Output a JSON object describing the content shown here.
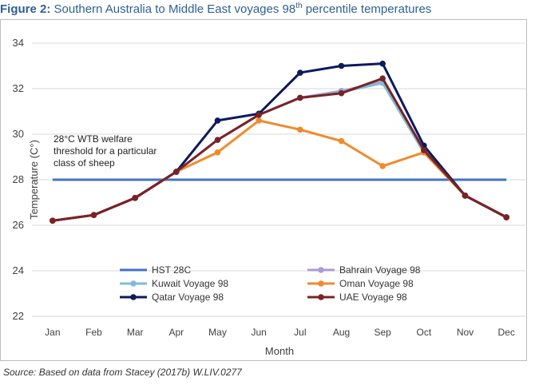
{
  "header": {
    "figure_label": "Figure 2:",
    "title_text": "Southern Australia to Middle East voyages 98",
    "title_sup": "th",
    "title_end": "percentile temperatures"
  },
  "source": "Source: Based on data from Stacey (2017b) W.LIV.0277",
  "annotation": [
    "28°C WTB welfare",
    "threshold for a particular",
    "class of sheep"
  ],
  "chart_data": {
    "type": "line",
    "xlabel": "Month",
    "ylabel": "Temperature (C°)",
    "categories": [
      "Jan",
      "Feb",
      "Mar",
      "Apr",
      "May",
      "Jun",
      "Jul",
      "Aug",
      "Sep",
      "Oct",
      "Nov",
      "Dec"
    ],
    "ylim": [
      22,
      34
    ],
    "yticks": [
      22,
      24,
      26,
      28,
      30,
      32,
      34
    ],
    "grid": true,
    "legend_position": "bottom-center",
    "series": [
      {
        "name": "HST 28C",
        "color": "#4472c4",
        "marker": false,
        "values": [
          28,
          28,
          28,
          28,
          28,
          28,
          28,
          28,
          28,
          28,
          28,
          28
        ]
      },
      {
        "name": "Bahrain Voyage 98",
        "color": "#a99bd4",
        "marker": true,
        "values": [
          26.2,
          26.45,
          27.2,
          28.35,
          29.75,
          30.85,
          31.6,
          31.9,
          32.3,
          29.2,
          27.3,
          26.35
        ]
      },
      {
        "name": "Kuwait Voyage 98",
        "color": "#7fbcd8",
        "marker": true,
        "values": [
          26.2,
          26.45,
          27.2,
          28.35,
          29.75,
          30.85,
          31.6,
          31.85,
          32.25,
          29.2,
          27.3,
          26.35
        ]
      },
      {
        "name": "Oman Voyage 98",
        "color": "#f08a2c",
        "marker": true,
        "values": [
          26.2,
          26.45,
          27.2,
          28.35,
          29.2,
          30.6,
          30.2,
          29.7,
          28.6,
          29.2,
          27.3,
          26.35
        ]
      },
      {
        "name": "Qatar Voyage 98",
        "color": "#0d1a5c",
        "marker": true,
        "values": [
          26.2,
          26.45,
          27.2,
          28.35,
          30.6,
          30.9,
          32.7,
          33.0,
          33.1,
          29.5,
          27.3,
          26.35
        ]
      },
      {
        "name": "UAE Voyage 98",
        "color": "#7b2226",
        "marker": true,
        "values": [
          26.2,
          26.45,
          27.2,
          28.35,
          29.75,
          30.85,
          31.6,
          31.8,
          32.45,
          29.3,
          27.3,
          26.35
        ]
      }
    ]
  }
}
